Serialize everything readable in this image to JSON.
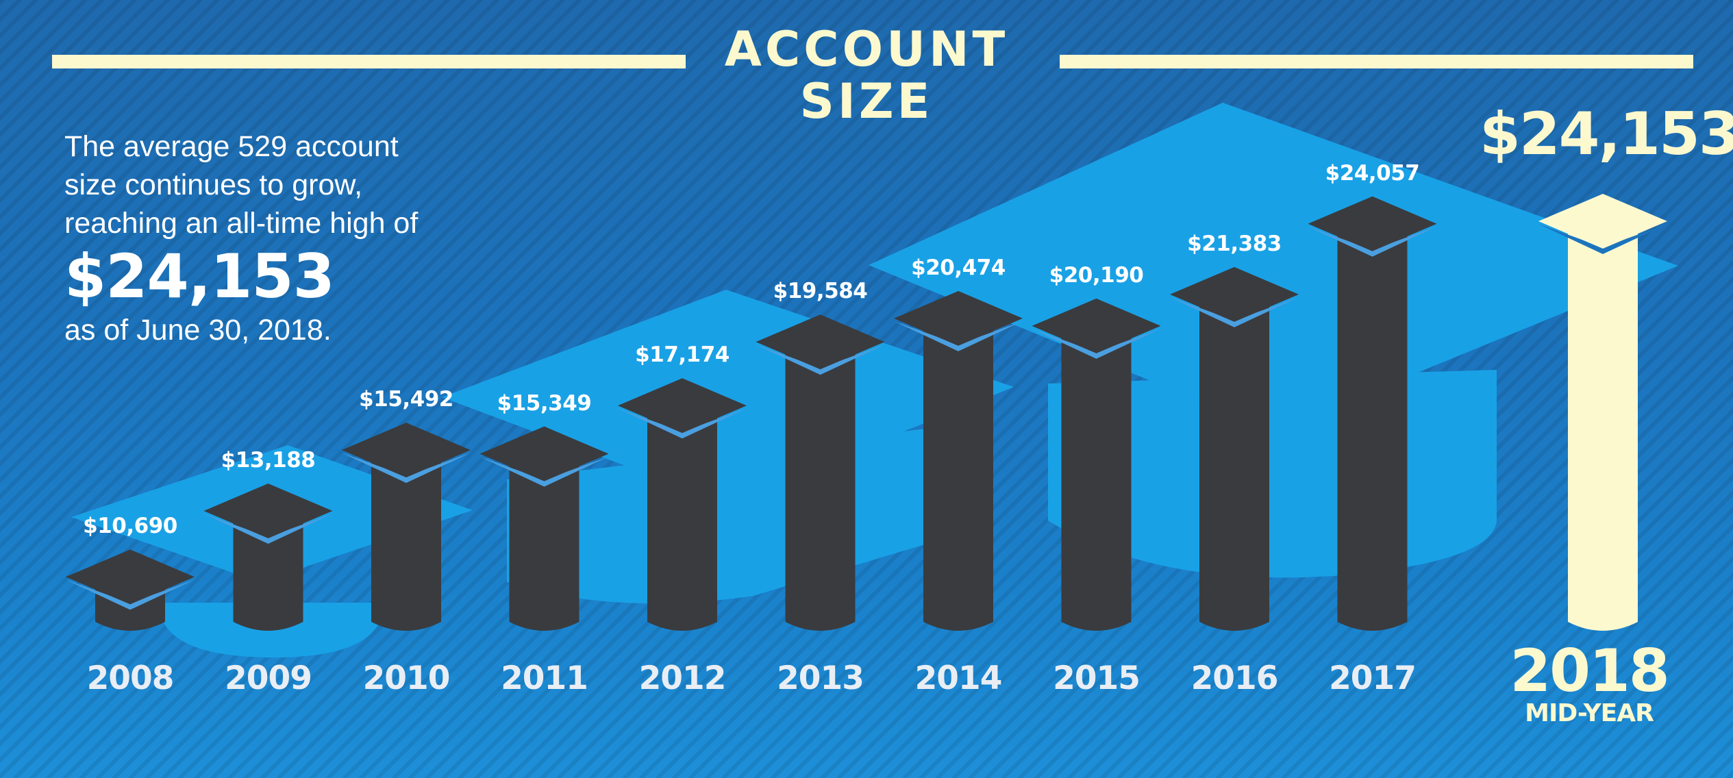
{
  "header": {
    "title_line1": "ACCOUNT",
    "title_line2": "SIZE"
  },
  "intro": {
    "line1": "The average 529 account",
    "line2": "size continues to grow,",
    "line3": "reaching an all-time high of",
    "highlight": "$24,153",
    "line4": "as of June 30, 2018."
  },
  "highlight": {
    "value_label": "$24,153",
    "year": "2018",
    "sub": "MID-YEAR"
  },
  "colors": {
    "background": "#1c74bd",
    "bar": "#3a3b3e",
    "cap_edge": "#4a9fe0",
    "highlight": "#fdf9cf",
    "decor_cap": "#19a1e6"
  },
  "chart_data": {
    "type": "bar",
    "title": "ACCOUNT SIZE",
    "xlabel": "",
    "ylabel": "",
    "categories": [
      "2008",
      "2009",
      "2010",
      "2011",
      "2012",
      "2013",
      "2014",
      "2015",
      "2016",
      "2017",
      "2018 MID-YEAR"
    ],
    "values": [
      10690,
      13188,
      15492,
      15349,
      17174,
      19584,
      20474,
      20190,
      21383,
      24057,
      24153
    ],
    "value_labels": [
      "$10,690",
      "$13,188",
      "$15,492",
      "$15,349",
      "$17,174",
      "$19,584",
      "$20,474",
      "$20,190",
      "$21,383",
      "$24,057",
      "$24,153"
    ],
    "year_labels": [
      "2008",
      "2009",
      "2010",
      "2011",
      "2012",
      "2013",
      "2014",
      "2015",
      "2016",
      "2017"
    ],
    "highlighted_index": 10,
    "grid": false,
    "legend": "none"
  }
}
